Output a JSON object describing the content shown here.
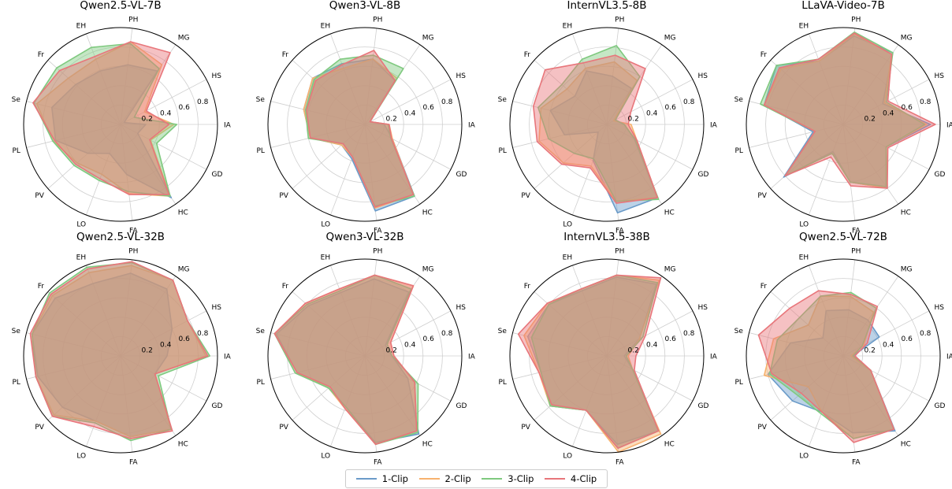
{
  "legend": {
    "items": [
      {
        "label": "1-Clip",
        "color": "#6a9bc9"
      },
      {
        "label": "2-Clip",
        "color": "#f7b26e"
      },
      {
        "label": "3-Clip",
        "color": "#7fc97f"
      },
      {
        "label": "4-Clip",
        "color": "#e8767b"
      }
    ]
  },
  "chart_data": [
    {
      "type": "radar",
      "title": "Qwen2.5-VL-7B",
      "axes": [
        "IA",
        "HS",
        "MG",
        "PH",
        "EH",
        "Fr",
        "Se",
        "PL",
        "PV",
        "LO",
        "FA",
        "HC",
        "GD"
      ],
      "rlim": [
        0,
        1
      ],
      "rticks": [
        "0.2",
        "0.4",
        "0.6",
        "0.8"
      ],
      "grid": true,
      "series": [
        {
          "name": "1-Clip",
          "values": [
            0.26,
            0.04,
            0.67,
            0.62,
            0.59,
            0.62,
            0.73,
            0.69,
            0.45,
            0.32,
            0.52,
            0.92,
            0.2
          ]
        },
        {
          "name": "2-Clip",
          "values": [
            0.55,
            0.28,
            0.75,
            0.86,
            0.72,
            0.72,
            0.89,
            0.72,
            0.6,
            0.55,
            0.72,
            0.9,
            0.35
          ]
        },
        {
          "name": "3-Clip",
          "values": [
            0.58,
            0.16,
            0.7,
            0.84,
            0.85,
            0.88,
            0.92,
            0.72,
            0.64,
            0.62,
            0.7,
            0.9,
            0.42
          ]
        },
        {
          "name": "4-Clip",
          "values": [
            0.5,
            0.3,
            0.9,
            0.86,
            0.75,
            0.84,
            0.93,
            0.7,
            0.62,
            0.6,
            0.73,
            0.88,
            0.34
          ]
        }
      ]
    },
    {
      "type": "radar",
      "title": "Qwen3-VL-8B",
      "axes": [
        "IA",
        "HS",
        "MG",
        "PH",
        "EH",
        "Fr",
        "Se",
        "PL",
        "PV",
        "LO",
        "FA",
        "HC",
        "GD"
      ],
      "rlim": [
        0,
        1
      ],
      "rticks": [
        "0.2",
        "0.4",
        "0.6",
        "0.8"
      ],
      "grid": true,
      "series": [
        {
          "name": "1-Clip",
          "values": [
            0.2,
            0.06,
            0.55,
            0.68,
            0.67,
            0.72,
            0.65,
            0.58,
            0.32,
            0.38,
            0.9,
            0.9,
            0.32
          ]
        },
        {
          "name": "2-Clip",
          "values": [
            0.25,
            0.06,
            0.58,
            0.68,
            0.62,
            0.72,
            0.65,
            0.58,
            0.32,
            0.36,
            0.87,
            0.88,
            0.32
          ]
        },
        {
          "name": "3-Clip",
          "values": [
            0.24,
            0.06,
            0.7,
            0.72,
            0.72,
            0.7,
            0.63,
            0.6,
            0.3,
            0.36,
            0.85,
            0.9,
            0.3
          ]
        },
        {
          "name": "4-Clip",
          "values": [
            0.25,
            0.06,
            0.55,
            0.77,
            0.66,
            0.68,
            0.62,
            0.58,
            0.3,
            0.36,
            0.86,
            0.88,
            0.31
          ]
        }
      ]
    },
    {
      "type": "radar",
      "title": "InternVL3.5-8B",
      "axes": [
        "IA",
        "HS",
        "MG",
        "PH",
        "EH",
        "Fr",
        "Se",
        "PL",
        "PV",
        "LO",
        "FA",
        "HC",
        "GD"
      ],
      "rlim": [
        0,
        1
      ],
      "rticks": [
        "0.2",
        "0.4",
        "0.6",
        "0.8"
      ],
      "grid": true,
      "series": [
        {
          "name": "1-Clip",
          "values": [
            0.18,
            0.1,
            0.45,
            0.5,
            0.59,
            0.44,
            0.6,
            0.45,
            0.12,
            0.4,
            0.92,
            0.92,
            0.32
          ]
        },
        {
          "name": "2-Clip",
          "values": [
            0.25,
            0.08,
            0.55,
            0.65,
            0.62,
            0.55,
            0.7,
            0.72,
            0.6,
            0.46,
            0.8,
            0.92,
            0.35
          ]
        },
        {
          "name": "3-Clip",
          "values": [
            0.18,
            0.1,
            0.6,
            0.82,
            0.72,
            0.62,
            0.73,
            0.62,
            0.45,
            0.38,
            0.8,
            0.94,
            0.33
          ]
        },
        {
          "name": "4-Clip",
          "values": [
            0.22,
            0.28,
            0.7,
            0.72,
            0.68,
            0.85,
            0.78,
            0.74,
            0.62,
            0.48,
            0.82,
            0.92,
            0.35
          ]
        }
      ]
    },
    {
      "type": "radar",
      "title": "LLaVA-Video-7B",
      "axes": [
        "IA",
        "HS",
        "MG",
        "PH",
        "EH",
        "Fr",
        "Se",
        "PL",
        "PV",
        "LO",
        "FA",
        "HC",
        "GD"
      ],
      "rlim": [
        0,
        1
      ],
      "rticks": [
        "0.2",
        "0.4",
        "0.6",
        "0.8"
      ],
      "grid": true,
      "series": [
        {
          "name": "1-Clip",
          "values": [
            0.9,
            0.46,
            0.9,
            0.92,
            0.7,
            0.92,
            0.84,
            0.32,
            0.82,
            0.3,
            0.6,
            0.8,
            0.5
          ]
        },
        {
          "name": "2-Clip",
          "values": [
            0.86,
            0.48,
            0.88,
            0.94,
            0.7,
            0.86,
            0.84,
            0.3,
            0.8,
            0.32,
            0.6,
            0.8,
            0.5
          ]
        },
        {
          "name": "3-Clip",
          "values": [
            0.84,
            0.5,
            0.9,
            0.96,
            0.72,
            0.92,
            0.88,
            0.3,
            0.8,
            0.32,
            0.6,
            0.78,
            0.5
          ]
        },
        {
          "name": "4-Clip",
          "values": [
            0.95,
            0.52,
            0.88,
            0.95,
            0.72,
            0.88,
            0.84,
            0.3,
            0.8,
            0.36,
            0.64,
            0.8,
            0.52
          ]
        }
      ]
    },
    {
      "type": "radar",
      "title": "Qwen2.5-VL-32B",
      "axes": [
        "IA",
        "HS",
        "MG",
        "PH",
        "EH",
        "Fr",
        "Se",
        "PL",
        "PV",
        "LO",
        "FA",
        "HC",
        "GD"
      ],
      "rlim": [
        0,
        1
      ],
      "rticks": [
        "0.2",
        "0.4",
        "0.6",
        "0.8"
      ],
      "grid": true,
      "series": [
        {
          "name": "1-Clip",
          "values": [
            0.48,
            0.6,
            0.84,
            0.86,
            0.8,
            0.9,
            0.94,
            0.88,
            0.8,
            0.72,
            0.84,
            0.92,
            0.4
          ]
        },
        {
          "name": "2-Clip",
          "values": [
            0.88,
            0.78,
            0.95,
            0.94,
            0.92,
            0.94,
            0.94,
            0.9,
            0.92,
            0.72,
            0.84,
            0.92,
            0.4
          ]
        },
        {
          "name": "3-Clip",
          "values": [
            0.92,
            0.78,
            0.95,
            0.97,
            0.98,
            0.98,
            0.94,
            0.9,
            0.94,
            0.74,
            0.88,
            0.92,
            0.44
          ]
        },
        {
          "name": "4-Clip",
          "values": [
            0.9,
            0.78,
            0.95,
            0.98,
            0.96,
            0.96,
            0.96,
            0.9,
            0.94,
            0.78,
            0.86,
            0.94,
            0.4
          ]
        }
      ]
    },
    {
      "type": "radar",
      "title": "Qwen3-VL-32B",
      "axes": [
        "IA",
        "HS",
        "MG",
        "PH",
        "EH",
        "Fr",
        "Se",
        "PL",
        "PV",
        "LO",
        "FA",
        "HC",
        "GD"
      ],
      "rlim": [
        0,
        1
      ],
      "rticks": [
        "0.2",
        "0.4",
        "0.6",
        "0.8"
      ],
      "grid": true,
      "series": [
        {
          "name": "1-Clip",
          "values": [
            0.28,
            0.24,
            0.8,
            0.8,
            0.7,
            0.78,
            0.94,
            0.72,
            0.5,
            0.56,
            0.9,
            0.98,
            0.5
          ]
        },
        {
          "name": "2-Clip",
          "values": [
            0.3,
            0.3,
            0.88,
            0.84,
            0.74,
            0.82,
            0.96,
            0.72,
            0.5,
            0.58,
            0.92,
            0.94,
            0.58
          ]
        },
        {
          "name": "3-Clip",
          "values": [
            0.28,
            0.26,
            0.84,
            0.84,
            0.72,
            0.8,
            0.96,
            0.74,
            0.5,
            0.56,
            0.92,
            0.96,
            0.62
          ]
        },
        {
          "name": "4-Clip",
          "values": [
            0.3,
            0.3,
            0.88,
            0.84,
            0.74,
            0.82,
            0.96,
            0.72,
            0.48,
            0.58,
            0.92,
            0.94,
            0.58
          ]
        }
      ]
    },
    {
      "type": "radar",
      "title": "InternVL3.5-38B",
      "axes": [
        "IA",
        "HS",
        "MG",
        "PH",
        "EH",
        "Fr",
        "Se",
        "PL",
        "PV",
        "LO",
        "FA",
        "HC",
        "GD"
      ],
      "rlim": [
        0,
        1
      ],
      "rticks": [
        "0.2",
        "0.4",
        "0.6",
        "0.8"
      ],
      "grid": true,
      "series": [
        {
          "name": "1-Clip",
          "values": [
            0.18,
            0.38,
            0.9,
            0.82,
            0.72,
            0.8,
            0.84,
            0.7,
            0.78,
            0.6,
            0.92,
            0.94,
            0.3
          ]
        },
        {
          "name": "2-Clip",
          "values": [
            0.22,
            0.38,
            0.95,
            0.84,
            0.74,
            0.82,
            0.88,
            0.72,
            0.78,
            0.6,
            1.0,
            0.98,
            0.3
          ]
        },
        {
          "name": "3-Clip",
          "values": [
            0.2,
            0.42,
            0.92,
            0.84,
            0.74,
            0.8,
            0.8,
            0.7,
            0.78,
            0.6,
            0.96,
            0.94,
            0.3
          ]
        },
        {
          "name": "4-Clip",
          "values": [
            0.3,
            0.45,
            0.98,
            0.84,
            0.74,
            0.82,
            0.94,
            0.72,
            0.76,
            0.6,
            0.96,
            0.94,
            0.32
          ]
        }
      ]
    },
    {
      "type": "radar",
      "title": "Qwen2.5-VL-72B",
      "axes": [
        "IA",
        "HS",
        "MG",
        "PH",
        "EH",
        "Fr",
        "Se",
        "PL",
        "PV",
        "LO",
        "FA",
        "HC",
        "GD"
      ],
      "rlim": [
        0,
        1
      ],
      "rticks": [
        "0.2",
        "0.4",
        "0.6",
        "0.8"
      ],
      "grid": true,
      "series": [
        {
          "name": "1-Clip",
          "values": [
            0.1,
            0.42,
            0.45,
            0.48,
            0.5,
            0.28,
            0.56,
            0.8,
            0.7,
            0.62,
            0.8,
            0.94,
            0.32
          ]
        },
        {
          "name": "2-Clip",
          "values": [
            0.08,
            0.24,
            0.55,
            0.62,
            0.66,
            0.48,
            0.74,
            0.84,
            0.48,
            0.62,
            0.86,
            0.92,
            0.32
          ]
        },
        {
          "name": "3-Clip",
          "values": [
            0.1,
            0.22,
            0.6,
            0.66,
            0.66,
            0.6,
            0.7,
            0.78,
            0.62,
            0.64,
            0.86,
            0.92,
            0.32
          ]
        },
        {
          "name": "4-Clip",
          "values": [
            0.12,
            0.28,
            0.62,
            0.64,
            0.72,
            0.74,
            0.9,
            0.76,
            0.58,
            0.62,
            0.9,
            0.92,
            0.32
          ]
        }
      ]
    }
  ]
}
